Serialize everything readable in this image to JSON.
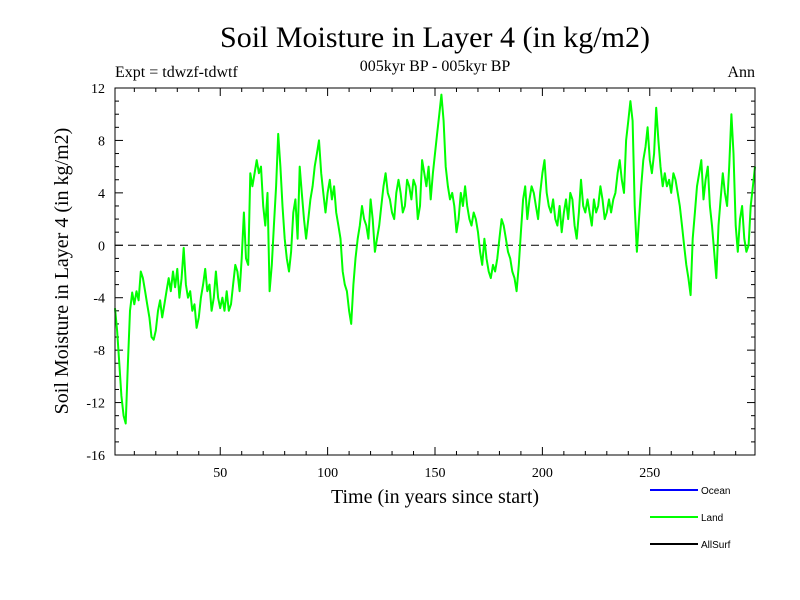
{
  "chart_data": {
    "type": "line",
    "title": "Soil Moisture in Layer 4 (in kg/m2)",
    "subtitle": "005kyr BP - 005kyr BP",
    "left_label": "Expt = tdwzf-tdwtf",
    "right_label": "Ann",
    "xlabel": "Time (in years since start)",
    "ylabel": "Soil Moisture in Layer 4 (in kg/m2)",
    "xlim": [
      1,
      299
    ],
    "ylim": [
      -16,
      12
    ],
    "xticks": [
      50,
      100,
      150,
      200,
      250
    ],
    "yticks": [
      -16,
      -12,
      -8,
      -4,
      0,
      4,
      8,
      12
    ],
    "reference_line": {
      "y": 0,
      "style": "dashed"
    },
    "legend": {
      "placement": "bottom-right",
      "entries": [
        {
          "name": "Ocean",
          "color": "#0000ff"
        },
        {
          "name": "Land",
          "color": "#00ff00"
        },
        {
          "name": "AllSurf",
          "color": "#000000"
        }
      ]
    },
    "series": [
      {
        "name": "Land",
        "color": "#00ff00",
        "points": [
          [
            1,
            -4.8
          ],
          [
            2,
            -6.5
          ],
          [
            3,
            -9.0
          ],
          [
            4,
            -11.5
          ],
          [
            5,
            -13.0
          ],
          [
            6,
            -13.6
          ],
          [
            7,
            -9.0
          ],
          [
            8,
            -5.0
          ],
          [
            9,
            -3.6
          ],
          [
            10,
            -4.5
          ],
          [
            11,
            -3.5
          ],
          [
            12,
            -4.2
          ],
          [
            13,
            -2.0
          ],
          [
            14,
            -2.5
          ],
          [
            15,
            -3.5
          ],
          [
            16,
            -4.5
          ],
          [
            17,
            -5.5
          ],
          [
            18,
            -7.0
          ],
          [
            19,
            -7.2
          ],
          [
            20,
            -6.5
          ],
          [
            21,
            -5.0
          ],
          [
            22,
            -4.2
          ],
          [
            23,
            -5.5
          ],
          [
            24,
            -4.5
          ],
          [
            25,
            -3.5
          ],
          [
            26,
            -2.5
          ],
          [
            27,
            -3.5
          ],
          [
            28,
            -2.0
          ],
          [
            29,
            -3.2
          ],
          [
            30,
            -1.8
          ],
          [
            31,
            -4.0
          ],
          [
            32,
            -2.5
          ],
          [
            33,
            -0.2
          ],
          [
            34,
            -3.0
          ],
          [
            35,
            -4.0
          ],
          [
            36,
            -3.5
          ],
          [
            37,
            -5.0
          ],
          [
            38,
            -4.5
          ],
          [
            39,
            -6.3
          ],
          [
            40,
            -5.5
          ],
          [
            41,
            -4.0
          ],
          [
            42,
            -3.0
          ],
          [
            43,
            -1.8
          ],
          [
            44,
            -3.5
          ],
          [
            45,
            -3.0
          ],
          [
            46,
            -5.0
          ],
          [
            47,
            -4.0
          ],
          [
            48,
            -2.0
          ],
          [
            49,
            -4.0
          ],
          [
            50,
            -4.8
          ],
          [
            51,
            -4.0
          ],
          [
            52,
            -5.0
          ],
          [
            53,
            -3.5
          ],
          [
            54,
            -5.0
          ],
          [
            55,
            -4.5
          ],
          [
            56,
            -3.0
          ],
          [
            57,
            -1.5
          ],
          [
            58,
            -2.0
          ],
          [
            59,
            -3.5
          ],
          [
            60,
            -1.0
          ],
          [
            61,
            2.5
          ],
          [
            62,
            -1.0
          ],
          [
            63,
            -1.5
          ],
          [
            64,
            5.5
          ],
          [
            65,
            4.5
          ],
          [
            66,
            5.5
          ],
          [
            67,
            6.5
          ],
          [
            68,
            5.5
          ],
          [
            69,
            6.0
          ],
          [
            70,
            3.0
          ],
          [
            71,
            1.5
          ],
          [
            72,
            4.0
          ],
          [
            73,
            -3.5
          ],
          [
            74,
            -1.5
          ],
          [
            75,
            1.5
          ],
          [
            76,
            4.5
          ],
          [
            77,
            8.5
          ],
          [
            78,
            6.0
          ],
          [
            79,
            3.0
          ],
          [
            80,
            0.5
          ],
          [
            81,
            -1.0
          ],
          [
            82,
            -2.0
          ],
          [
            83,
            -0.5
          ],
          [
            84,
            2.5
          ],
          [
            85,
            3.5
          ],
          [
            86,
            0.5
          ],
          [
            87,
            6.0
          ],
          [
            88,
            4.0
          ],
          [
            89,
            2.0
          ],
          [
            90,
            0.5
          ],
          [
            91,
            2.0
          ],
          [
            92,
            3.5
          ],
          [
            93,
            4.5
          ],
          [
            94,
            6.0
          ],
          [
            95,
            7.0
          ],
          [
            96,
            8.0
          ],
          [
            97,
            5.5
          ],
          [
            98,
            4.0
          ],
          [
            99,
            2.5
          ],
          [
            100,
            4.0
          ],
          [
            101,
            5.0
          ],
          [
            102,
            3.5
          ],
          [
            103,
            4.5
          ],
          [
            104,
            2.5
          ],
          [
            105,
            1.5
          ],
          [
            106,
            0.5
          ],
          [
            107,
            -2.0
          ],
          [
            108,
            -3.0
          ],
          [
            109,
            -3.5
          ],
          [
            110,
            -5.0
          ],
          [
            111,
            -6.0
          ],
          [
            112,
            -3.0
          ],
          [
            113,
            -1.0
          ],
          [
            114,
            0.5
          ],
          [
            115,
            1.5
          ],
          [
            116,
            3.0
          ],
          [
            117,
            2.0
          ],
          [
            118,
            1.5
          ],
          [
            119,
            0.5
          ],
          [
            120,
            3.5
          ],
          [
            121,
            2.0
          ],
          [
            122,
            -0.5
          ],
          [
            123,
            0.5
          ],
          [
            124,
            1.5
          ],
          [
            125,
            3.0
          ],
          [
            126,
            4.5
          ],
          [
            127,
            5.5
          ],
          [
            128,
            4.0
          ],
          [
            129,
            3.5
          ],
          [
            130,
            2.5
          ],
          [
            131,
            2.0
          ],
          [
            132,
            4.0
          ],
          [
            133,
            5.0
          ],
          [
            134,
            4.0
          ],
          [
            135,
            2.5
          ],
          [
            136,
            3.0
          ],
          [
            137,
            5.0
          ],
          [
            138,
            4.5
          ],
          [
            139,
            3.5
          ],
          [
            140,
            5.0
          ],
          [
            141,
            4.5
          ],
          [
            142,
            2.0
          ],
          [
            143,
            3.0
          ],
          [
            144,
            6.5
          ],
          [
            145,
            5.5
          ],
          [
            146,
            4.5
          ],
          [
            147,
            6.0
          ],
          [
            148,
            3.5
          ],
          [
            149,
            5.5
          ],
          [
            150,
            7.0
          ],
          [
            151,
            8.5
          ],
          [
            152,
            10.0
          ],
          [
            153,
            11.5
          ],
          [
            154,
            9.5
          ],
          [
            155,
            6.0
          ],
          [
            156,
            4.5
          ],
          [
            157,
            3.5
          ],
          [
            158,
            4.0
          ],
          [
            159,
            3.0
          ],
          [
            160,
            1.0
          ],
          [
            161,
            2.0
          ],
          [
            162,
            4.0
          ],
          [
            163,
            3.0
          ],
          [
            164,
            4.5
          ],
          [
            165,
            3.0
          ],
          [
            166,
            2.0
          ],
          [
            167,
            1.5
          ],
          [
            168,
            2.5
          ],
          [
            169,
            2.0
          ],
          [
            170,
            1.0
          ],
          [
            171,
            -0.5
          ],
          [
            172,
            -1.5
          ],
          [
            173,
            0.5
          ],
          [
            174,
            -1.0
          ],
          [
            175,
            -2.0
          ],
          [
            176,
            -2.5
          ],
          [
            177,
            -1.5
          ],
          [
            178,
            -2.0
          ],
          [
            179,
            -1.0
          ],
          [
            180,
            0.5
          ],
          [
            181,
            2.0
          ],
          [
            182,
            1.5
          ],
          [
            183,
            0.5
          ],
          [
            184,
            -0.5
          ],
          [
            185,
            -1.0
          ],
          [
            186,
            -2.0
          ],
          [
            187,
            -2.5
          ],
          [
            188,
            -3.5
          ],
          [
            189,
            -1.5
          ],
          [
            190,
            1.0
          ],
          [
            191,
            3.5
          ],
          [
            192,
            4.5
          ],
          [
            193,
            2.0
          ],
          [
            194,
            3.5
          ],
          [
            195,
            4.5
          ],
          [
            196,
            4.0
          ],
          [
            197,
            3.0
          ],
          [
            198,
            2.0
          ],
          [
            199,
            4.0
          ],
          [
            200,
            5.5
          ],
          [
            201,
            6.5
          ],
          [
            202,
            4.0
          ],
          [
            203,
            3.0
          ],
          [
            204,
            2.5
          ],
          [
            205,
            3.5
          ],
          [
            206,
            2.0
          ],
          [
            207,
            1.5
          ],
          [
            208,
            3.0
          ],
          [
            209,
            1.0
          ],
          [
            210,
            2.5
          ],
          [
            211,
            3.5
          ],
          [
            212,
            2.0
          ],
          [
            213,
            4.0
          ],
          [
            214,
            3.5
          ],
          [
            215,
            1.5
          ],
          [
            216,
            0.5
          ],
          [
            217,
            2.5
          ],
          [
            218,
            5.0
          ],
          [
            219,
            3.0
          ],
          [
            220,
            2.5
          ],
          [
            221,
            3.5
          ],
          [
            222,
            2.5
          ],
          [
            223,
            1.5
          ],
          [
            224,
            3.5
          ],
          [
            225,
            2.5
          ],
          [
            226,
            3.0
          ],
          [
            227,
            4.5
          ],
          [
            228,
            3.5
          ],
          [
            229,
            2.0
          ],
          [
            230,
            2.5
          ],
          [
            231,
            3.5
          ],
          [
            232,
            2.5
          ],
          [
            233,
            3.5
          ],
          [
            234,
            4.0
          ],
          [
            235,
            5.5
          ],
          [
            236,
            6.5
          ],
          [
            237,
            5.0
          ],
          [
            238,
            4.0
          ],
          [
            239,
            8.0
          ],
          [
            240,
            9.5
          ],
          [
            241,
            11.0
          ],
          [
            242,
            9.5
          ],
          [
            243,
            3.0
          ],
          [
            244,
            -0.5
          ],
          [
            245,
            2.0
          ],
          [
            246,
            4.5
          ],
          [
            247,
            6.5
          ],
          [
            248,
            7.5
          ],
          [
            249,
            9.0
          ],
          [
            250,
            6.5
          ],
          [
            251,
            5.5
          ],
          [
            252,
            7.0
          ],
          [
            253,
            10.5
          ],
          [
            254,
            8.0
          ],
          [
            255,
            6.0
          ],
          [
            256,
            4.5
          ],
          [
            257,
            5.5
          ],
          [
            258,
            4.5
          ],
          [
            259,
            5.0
          ],
          [
            260,
            4.0
          ],
          [
            261,
            5.5
          ],
          [
            262,
            5.0
          ],
          [
            263,
            4.0
          ],
          [
            264,
            3.0
          ],
          [
            265,
            1.5
          ],
          [
            266,
            0.0
          ],
          [
            267,
            -1.5
          ],
          [
            268,
            -2.5
          ],
          [
            269,
            -3.8
          ],
          [
            270,
            0.5
          ],
          [
            271,
            2.5
          ],
          [
            272,
            4.5
          ],
          [
            273,
            5.5
          ],
          [
            274,
            6.5
          ],
          [
            275,
            3.5
          ],
          [
            276,
            5.0
          ],
          [
            277,
            6.0
          ],
          [
            278,
            3.0
          ],
          [
            279,
            1.5
          ],
          [
            280,
            -0.5
          ],
          [
            281,
            -2.5
          ],
          [
            282,
            1.5
          ],
          [
            283,
            3.5
          ],
          [
            284,
            5.5
          ],
          [
            285,
            4.0
          ],
          [
            286,
            3.0
          ],
          [
            287,
            6.0
          ],
          [
            288,
            10.0
          ],
          [
            289,
            7.0
          ],
          [
            290,
            1.5
          ],
          [
            291,
            -0.5
          ],
          [
            292,
            2.0
          ],
          [
            293,
            3.0
          ],
          [
            294,
            0.5
          ],
          [
            295,
            -0.5
          ],
          [
            296,
            0.0
          ],
          [
            297,
            3.0
          ],
          [
            298,
            4.5
          ],
          [
            299,
            6.0
          ]
        ]
      }
    ]
  }
}
